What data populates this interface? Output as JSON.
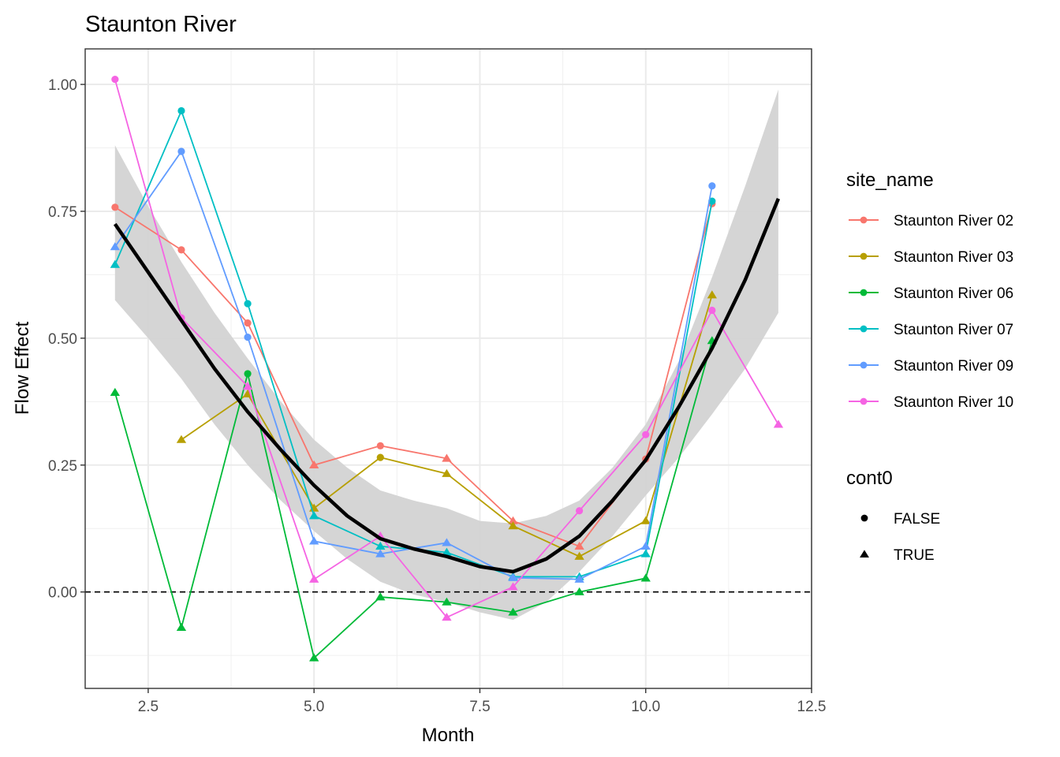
{
  "chart_data": {
    "type": "line",
    "title": "Staunton River",
    "xlabel": "Month",
    "ylabel": "Flow Effect",
    "xlim": [
      1.55,
      12.5
    ],
    "ylim": [
      -0.19,
      1.07
    ],
    "x_ticks": [
      2.5,
      5.0,
      7.5,
      10.0,
      12.5
    ],
    "x_tick_labels": [
      "2.5",
      "5.0",
      "7.5",
      "10.0",
      "12.5"
    ],
    "x_minor": [
      3.75,
      6.25,
      8.75,
      11.25
    ],
    "y_ticks": [
      0.0,
      0.25,
      0.5,
      0.75,
      1.0
    ],
    "y_tick_labels": [
      "0.00",
      "0.25",
      "0.50",
      "0.75",
      "1.00"
    ],
    "y_minor": [
      -0.125,
      0.125,
      0.375,
      0.625,
      0.875
    ],
    "grid": true,
    "reference_line": {
      "y": 0,
      "style": "dashed",
      "color": "#000000"
    },
    "legend_position": "right",
    "color_legend": {
      "title": "site_name",
      "entries": [
        {
          "name": "Staunton River 02",
          "color": "#F8766D"
        },
        {
          "name": "Staunton River 03",
          "color": "#B79F00"
        },
        {
          "name": "Staunton River 06",
          "color": "#00BA38"
        },
        {
          "name": "Staunton River 07",
          "color": "#00BFC4"
        },
        {
          "name": "Staunton River 09",
          "color": "#619CFF"
        },
        {
          "name": "Staunton River 10",
          "color": "#F564E3"
        }
      ]
    },
    "shape_legend": {
      "title": "cont0",
      "entries": [
        {
          "name": "FALSE",
          "shape": "circle"
        },
        {
          "name": "TRUE",
          "shape": "triangle"
        }
      ]
    },
    "series": [
      {
        "name": "Staunton River 02",
        "color": "#F8766D",
        "points": [
          [
            2,
            0.758,
            false
          ],
          [
            3,
            0.674,
            false
          ],
          [
            4,
            0.53,
            false
          ],
          [
            5,
            0.25,
            true
          ],
          [
            6,
            0.288,
            false
          ],
          [
            7,
            0.263,
            true
          ],
          [
            8,
            0.14,
            true
          ],
          [
            9,
            0.09,
            true
          ],
          [
            10,
            0.262,
            false
          ],
          [
            11,
            0.765,
            false
          ]
        ]
      },
      {
        "name": "Staunton River 03",
        "color": "#B79F00",
        "points": [
          [
            3,
            0.3,
            true
          ],
          [
            4,
            0.39,
            true
          ],
          [
            5,
            0.165,
            true
          ],
          [
            6,
            0.265,
            false
          ],
          [
            7,
            0.233,
            true
          ],
          [
            8,
            0.13,
            true
          ],
          [
            9,
            0.07,
            true
          ],
          [
            10,
            0.14,
            true
          ],
          [
            11,
            0.585,
            true
          ]
        ]
      },
      {
        "name": "Staunton River 06",
        "color": "#00BA38",
        "points": [
          [
            2,
            0.393,
            true
          ],
          [
            3,
            -0.07,
            true
          ],
          [
            4,
            0.43,
            false
          ],
          [
            5,
            -0.13,
            true
          ],
          [
            6,
            -0.01,
            true
          ],
          [
            7,
            -0.02,
            true
          ],
          [
            8,
            -0.04,
            true
          ],
          [
            9,
            0.0,
            true
          ],
          [
            10,
            0.027,
            true
          ],
          [
            11,
            0.495,
            true
          ]
        ]
      },
      {
        "name": "Staunton River 07",
        "color": "#00BFC4",
        "points": [
          [
            2,
            0.645,
            true
          ],
          [
            3,
            0.948,
            false
          ],
          [
            4,
            0.568,
            false
          ],
          [
            5,
            0.15,
            true
          ],
          [
            6,
            0.09,
            true
          ],
          [
            7,
            0.078,
            true
          ],
          [
            8,
            0.03,
            true
          ],
          [
            9,
            0.03,
            true
          ],
          [
            10,
            0.075,
            true
          ],
          [
            11,
            0.77,
            false
          ]
        ]
      },
      {
        "name": "Staunton River 09",
        "color": "#619CFF",
        "points": [
          [
            2,
            0.68,
            true
          ],
          [
            3,
            0.868,
            false
          ],
          [
            4,
            0.502,
            false
          ],
          [
            5,
            0.1,
            true
          ],
          [
            6,
            0.075,
            true
          ],
          [
            7,
            0.097,
            true
          ],
          [
            8,
            0.028,
            true
          ],
          [
            9,
            0.025,
            true
          ],
          [
            10,
            0.09,
            true
          ],
          [
            11,
            0.8,
            false
          ]
        ]
      },
      {
        "name": "Staunton River 10",
        "color": "#F564E3",
        "points": [
          [
            2,
            1.01,
            false
          ],
          [
            3,
            0.54,
            false
          ],
          [
            4,
            0.405,
            true
          ],
          [
            5,
            0.025,
            true
          ],
          [
            6,
            0.11,
            true
          ],
          [
            7,
            -0.05,
            true
          ],
          [
            8,
            0.01,
            true
          ],
          [
            9,
            0.16,
            false
          ],
          [
            10,
            0.31,
            false
          ],
          [
            11,
            0.555,
            false
          ],
          [
            12,
            0.33,
            true
          ]
        ]
      }
    ],
    "smooth": {
      "color": "#000000",
      "ribbon_color": "#D3D3D3",
      "x": [
        2,
        2.5,
        3,
        3.5,
        4,
        4.5,
        5,
        5.5,
        6,
        6.5,
        7,
        7.5,
        8,
        8.5,
        9,
        9.5,
        10,
        10.5,
        11,
        11.5,
        12
      ],
      "y": [
        0.725,
        0.63,
        0.535,
        0.44,
        0.355,
        0.28,
        0.21,
        0.15,
        0.105,
        0.085,
        0.07,
        0.05,
        0.04,
        0.065,
        0.11,
        0.18,
        0.26,
        0.365,
        0.48,
        0.615,
        0.775
      ],
      "upper": [
        0.88,
        0.76,
        0.65,
        0.55,
        0.46,
        0.375,
        0.3,
        0.245,
        0.2,
        0.18,
        0.165,
        0.14,
        0.135,
        0.15,
        0.18,
        0.245,
        0.33,
        0.455,
        0.62,
        0.8,
        0.99
      ],
      "lower": [
        0.575,
        0.5,
        0.42,
        0.33,
        0.25,
        0.18,
        0.12,
        0.065,
        0.02,
        -0.005,
        -0.02,
        -0.04,
        -0.055,
        -0.02,
        0.04,
        0.11,
        0.19,
        0.265,
        0.35,
        0.44,
        0.55
      ]
    }
  }
}
